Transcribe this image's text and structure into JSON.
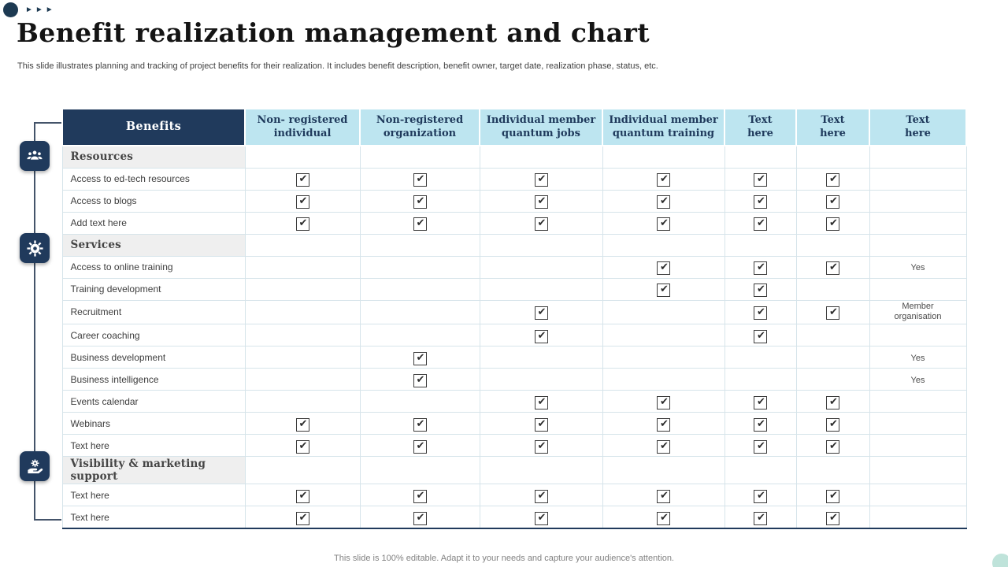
{
  "slide": {
    "title": "Benefit realization management and chart",
    "subtitle": "This slide illustrates planning and tracking of project benefits for their realization. It includes benefit description, benefit owner, target date, realization phase, status, etc.",
    "footer": "This slide is 100% editable. Adapt it to your needs and capture your audience's attention."
  },
  "decor": {
    "arrows": "►►►",
    "left_rail_icons": [
      "team-icon",
      "gear-icon",
      "hand-gear-icon"
    ]
  },
  "colors": {
    "navy": "#203A5C",
    "header_cyan": "#BDE5F0",
    "section_gray": "#EFEFEF",
    "rail": "#44546A",
    "accent_circle": "#1D3A52",
    "corner_circle": "#BFE3DA"
  },
  "table": {
    "check_glyph": "✔",
    "headers": [
      "Benefits",
      "Non- registered\nindividual",
      "Non-registered\norganization",
      "Individual member\nquantum jobs",
      "Individual member\nquantum training",
      "Text\nhere",
      "Text\nhere",
      "Text\nhere"
    ],
    "rows": [
      {
        "type": "section",
        "label": "Resources",
        "cells": [
          "",
          "",
          "",
          "",
          "",
          "",
          ""
        ]
      },
      {
        "type": "item",
        "label": "Access to ed-tech resources",
        "cells": [
          "check",
          "check",
          "check",
          "check",
          "check",
          "check",
          ""
        ]
      },
      {
        "type": "item",
        "label": "Access to blogs",
        "cells": [
          "check",
          "check",
          "check",
          "check",
          "check",
          "check",
          ""
        ]
      },
      {
        "type": "item",
        "label": "Add text here",
        "cells": [
          "check",
          "check",
          "check",
          "check",
          "check",
          "check",
          ""
        ]
      },
      {
        "type": "section",
        "label": "Services",
        "cells": [
          "",
          "",
          "",
          "",
          "",
          "",
          ""
        ]
      },
      {
        "type": "item",
        "label": "Access to online training",
        "cells": [
          "",
          "",
          "",
          "check",
          "check",
          "check",
          "Yes"
        ]
      },
      {
        "type": "item",
        "label": "Training development",
        "cells": [
          "",
          "",
          "",
          "check",
          "check",
          "",
          ""
        ]
      },
      {
        "type": "item",
        "label": "Recruitment",
        "cells": [
          "",
          "",
          "check",
          "",
          "check",
          "check",
          "Member\norganisation"
        ]
      },
      {
        "type": "item",
        "label": "Career coaching",
        "cells": [
          "",
          "",
          "check",
          "",
          "check",
          "",
          ""
        ]
      },
      {
        "type": "item",
        "label": "Business development",
        "cells": [
          "",
          "check",
          "",
          "",
          "",
          "",
          "Yes"
        ]
      },
      {
        "type": "item",
        "label": "Business intelligence",
        "cells": [
          "",
          "check",
          "",
          "",
          "",
          "",
          "Yes"
        ]
      },
      {
        "type": "item",
        "label": "Events calendar",
        "cells": [
          "",
          "",
          "check",
          "check",
          "check",
          "check",
          ""
        ]
      },
      {
        "type": "item",
        "label": "Webinars",
        "cells": [
          "check",
          "check",
          "check",
          "check",
          "check",
          "check",
          ""
        ]
      },
      {
        "type": "item",
        "label": "Text here",
        "cells": [
          "check",
          "check",
          "check",
          "check",
          "check",
          "check",
          ""
        ]
      },
      {
        "type": "section",
        "label": "Visibility & marketing support",
        "cells": [
          "",
          "",
          "",
          "",
          "",
          "",
          ""
        ]
      },
      {
        "type": "item",
        "label": "Text here",
        "cells": [
          "check",
          "check",
          "check",
          "check",
          "check",
          "check",
          ""
        ]
      },
      {
        "type": "item",
        "label": "Text here",
        "cells": [
          "check",
          "check",
          "check",
          "check",
          "check",
          "check",
          ""
        ]
      }
    ]
  }
}
